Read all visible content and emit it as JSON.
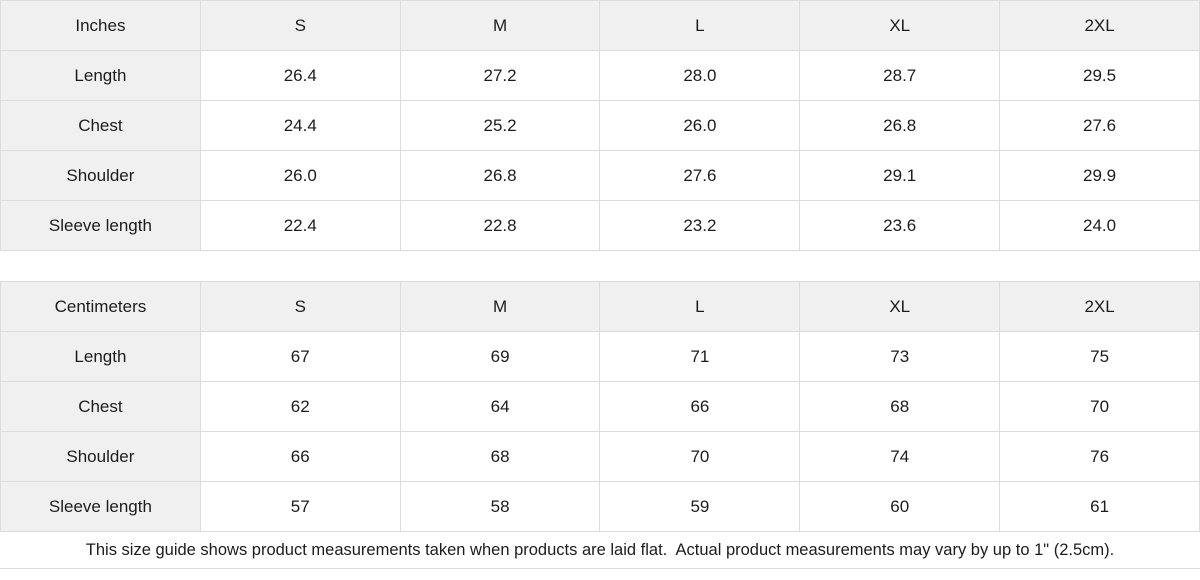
{
  "colors": {
    "header_bg": "#f0f0f0",
    "border": "#dcdcdc",
    "text": "#1c1c1c",
    "background": "#ffffff"
  },
  "chart_data": [
    {
      "type": "table",
      "unit": "Inches",
      "sizes": [
        "S",
        "M",
        "L",
        "XL",
        "2XL"
      ],
      "rows": [
        {
          "label": "Length",
          "values": [
            "26.4",
            "27.2",
            "28.0",
            "28.7",
            "29.5"
          ]
        },
        {
          "label": "Chest",
          "values": [
            "24.4",
            "25.2",
            "26.0",
            "26.8",
            "27.6"
          ]
        },
        {
          "label": "Shoulder",
          "values": [
            "26.0",
            "26.8",
            "27.6",
            "29.1",
            "29.9"
          ]
        },
        {
          "label": "Sleeve length",
          "values": [
            "22.4",
            "22.8",
            "23.2",
            "23.6",
            "24.0"
          ]
        }
      ]
    },
    {
      "type": "table",
      "unit": "Centimeters",
      "sizes": [
        "S",
        "M",
        "L",
        "XL",
        "2XL"
      ],
      "rows": [
        {
          "label": "Length",
          "values": [
            "67",
            "69",
            "71",
            "73",
            "75"
          ]
        },
        {
          "label": "Chest",
          "values": [
            "62",
            "64",
            "66",
            "68",
            "70"
          ]
        },
        {
          "label": "Shoulder",
          "values": [
            "66",
            "68",
            "70",
            "74",
            "76"
          ]
        },
        {
          "label": "Sleeve length",
          "values": [
            "57",
            "58",
            "59",
            "60",
            "61"
          ]
        }
      ]
    }
  ],
  "footer": {
    "note": "This size guide shows product measurements taken when products are laid flat.  Actual product measurements may vary by up to 1\" (2.5cm)."
  }
}
